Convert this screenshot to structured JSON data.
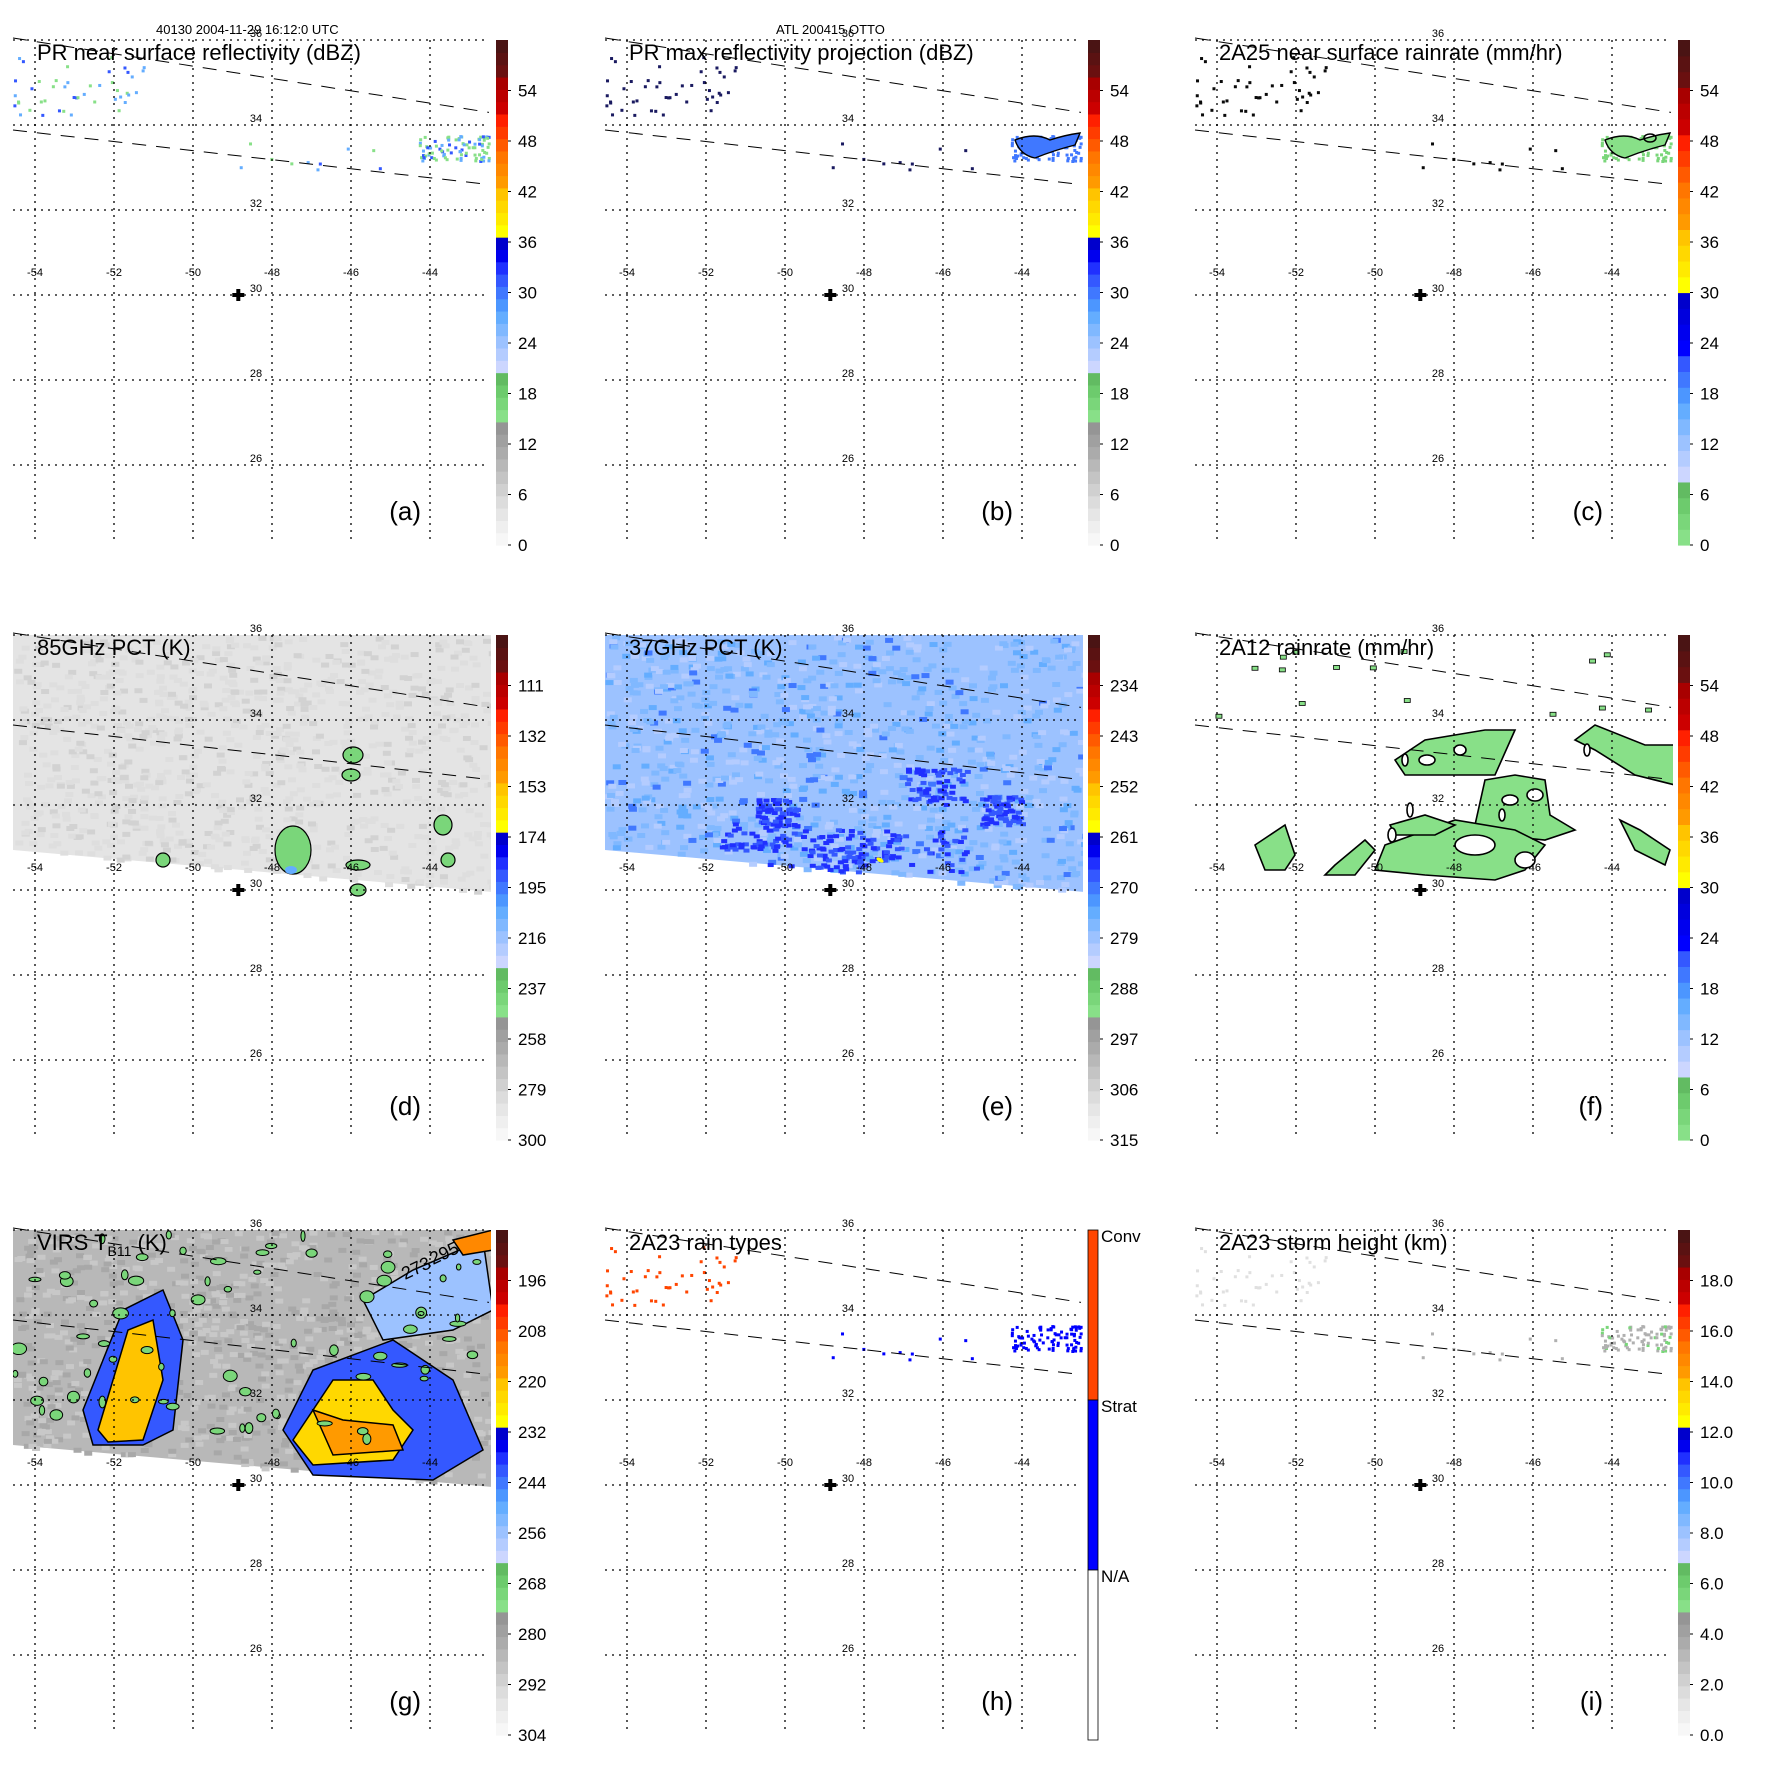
{
  "header": {
    "left_title": "40130 2004-11-29 16:12:0 UTC",
    "center_title": "ATL 200415 OTTO"
  },
  "chart_data": [
    {
      "id": "a",
      "type": "heatmap",
      "panel_label": "(a)",
      "title": "PR near surface reflectivity (dBZ)",
      "colorbar": {
        "kind": "continuous",
        "ticks": [
          "54",
          "48",
          "42",
          "36",
          "30",
          "24",
          "18",
          "12",
          "6",
          "0"
        ],
        "range": [
          0,
          60
        ]
      },
      "background": "none",
      "features": "sparse-pr",
      "lat_ticks": [
        "36",
        "34",
        "32",
        "30",
        "28",
        "26"
      ],
      "lon_ticks": [
        "-54",
        "-52",
        "-50",
        "-48",
        "-46",
        "-44"
      ],
      "storm_center": {
        "lon": -48.6,
        "lat": 30
      },
      "swath_edges": "dashed"
    },
    {
      "id": "b",
      "type": "heatmap",
      "panel_label": "(b)",
      "title": "PR max reflectivity projection (dBZ)",
      "colorbar": {
        "kind": "continuous",
        "ticks": [
          "54",
          "48",
          "42",
          "36",
          "30",
          "24",
          "18",
          "12",
          "6",
          "0"
        ],
        "range": [
          0,
          60
        ]
      },
      "background": "none",
      "features": "sparse-pr-contour",
      "lat_ticks": [
        "36",
        "34",
        "32",
        "30",
        "28",
        "26"
      ],
      "lon_ticks": [
        "-54",
        "-52",
        "-50",
        "-48",
        "-46",
        "-44"
      ],
      "storm_center": {
        "lon": -48.6,
        "lat": 30
      },
      "swath_edges": "dashed"
    },
    {
      "id": "c",
      "type": "heatmap",
      "panel_label": "(c)",
      "title": "2A25 near surface rainrate (mm/hr)",
      "colorbar": {
        "kind": "rain",
        "ticks": [
          "54",
          "48",
          "42",
          "36",
          "30",
          "24",
          "18",
          "12",
          "6",
          "0"
        ],
        "range": [
          0,
          60
        ]
      },
      "background": "none",
      "features": "sparse-rain",
      "lat_ticks": [
        "36",
        "34",
        "32",
        "30",
        "28",
        "26"
      ],
      "lon_ticks": [
        "-54",
        "-52",
        "-50",
        "-48",
        "-46",
        "-44"
      ],
      "storm_center": {
        "lon": -48.6,
        "lat": 30
      },
      "swath_edges": "dashed"
    },
    {
      "id": "d",
      "type": "heatmap",
      "panel_label": "(d)",
      "title": "85GHz PCT (K)",
      "colorbar": {
        "kind": "continuous",
        "ticks": [
          "111",
          "132",
          "153",
          "174",
          "195",
          "216",
          "237",
          "258",
          "279",
          "300"
        ],
        "range": [
          90,
          300
        ]
      },
      "background": "gray-swath",
      "features": "pct85",
      "lat_ticks": [
        "36",
        "34",
        "32",
        "30",
        "28",
        "26"
      ],
      "lon_ticks": [
        "-54",
        "-52",
        "-50",
        "-48",
        "-46",
        "-44"
      ],
      "storm_center": {
        "lon": -48.6,
        "lat": 30
      },
      "swath_edges": "dashed"
    },
    {
      "id": "e",
      "type": "heatmap",
      "panel_label": "(e)",
      "title": "37GHz PCT (K)",
      "colorbar": {
        "kind": "continuous",
        "ticks": [
          "234",
          "243",
          "252",
          "261",
          "270",
          "279",
          "288",
          "297",
          "306",
          "315"
        ],
        "range": [
          225,
          315
        ]
      },
      "background": "blue-swath",
      "features": "pct37",
      "lat_ticks": [
        "36",
        "34",
        "32",
        "30",
        "28",
        "26"
      ],
      "lon_ticks": [
        "-54",
        "-52",
        "-50",
        "-48",
        "-46",
        "-44"
      ],
      "storm_center": {
        "lon": -48.6,
        "lat": 30
      },
      "swath_edges": "dashed"
    },
    {
      "id": "f",
      "type": "heatmap",
      "panel_label": "(f)",
      "title": "2A12 rainrate (mm/hr)",
      "colorbar": {
        "kind": "rain",
        "ticks": [
          "54",
          "48",
          "42",
          "36",
          "30",
          "24",
          "18",
          "12",
          "6",
          "0"
        ],
        "range": [
          0,
          60
        ]
      },
      "background": "none",
      "features": "rain2a12",
      "lat_ticks": [
        "36",
        "34",
        "32",
        "30",
        "28",
        "26"
      ],
      "lon_ticks": [
        "-54",
        "-52",
        "-50",
        "-48",
        "-46",
        "-44"
      ],
      "storm_center": {
        "lon": -48.6,
        "lat": 30
      },
      "swath_edges": "dashed"
    },
    {
      "id": "g",
      "type": "heatmap",
      "panel_label": "(g)",
      "title": "VIRS T",
      "title_sub": "B11",
      "title_suffix": " (K)",
      "colorbar": {
        "kind": "continuous",
        "ticks": [
          "196",
          "208",
          "220",
          "232",
          "244",
          "256",
          "268",
          "280",
          "292",
          "304"
        ],
        "range": [
          184,
          304
        ]
      },
      "background": "gray-swath",
      "features": "virs",
      "contour_labels": [
        "273",
        "295"
      ],
      "lat_ticks": [
        "36",
        "34",
        "32",
        "30",
        "28",
        "26"
      ],
      "lon_ticks": [
        "-54",
        "-52",
        "-50",
        "-48",
        "-46",
        "-44"
      ],
      "storm_center": {
        "lon": -48.6,
        "lat": 30
      },
      "swath_edges": "dashed"
    },
    {
      "id": "h",
      "type": "heatmap",
      "panel_label": "(h)",
      "title": "2A23 rain types",
      "colorbar": {
        "kind": "categorical",
        "categories": [
          {
            "label": "Conv",
            "color": "#ff4500"
          },
          {
            "label": "Strat",
            "color": "#0000ff"
          },
          {
            "label": "N/A",
            "color": "#ffffff"
          }
        ]
      },
      "background": "none",
      "features": "raintype",
      "lat_ticks": [
        "36",
        "34",
        "32",
        "30",
        "28",
        "26"
      ],
      "lon_ticks": [
        "-54",
        "-52",
        "-50",
        "-48",
        "-46",
        "-44"
      ],
      "storm_center": {
        "lon": -48.6,
        "lat": 30
      },
      "swath_edges": "dashed"
    },
    {
      "id": "i",
      "type": "heatmap",
      "panel_label": "(i)",
      "title": "2A23 storm height (km)",
      "colorbar": {
        "kind": "continuous",
        "ticks": [
          "18.0",
          "16.0",
          "14.0",
          "12.0",
          "10.0",
          "8.0",
          "6.0",
          "4.0",
          "2.0",
          "0.0"
        ],
        "range": [
          0,
          20
        ]
      },
      "background": "none",
      "features": "stormheight",
      "lat_ticks": [
        "36",
        "34",
        "32",
        "30",
        "28",
        "26"
      ],
      "lon_ticks": [
        "-54",
        "-52",
        "-50",
        "-48",
        "-46",
        "-44"
      ],
      "storm_center": {
        "lon": -48.6,
        "lat": 30
      },
      "swath_edges": "dashed"
    }
  ],
  "colors": {
    "scale_continuous": [
      "#f7f7f7",
      "#efefef",
      "#e6e6e6",
      "#dcdcdc",
      "#d0d0d0",
      "#c4c4c4",
      "#b8b8b8",
      "#ababab",
      "#a0a0a0",
      "#959595",
      "#88e088",
      "#7ad67a",
      "#6dcb6d",
      "#62bb62",
      "#ccd6ff",
      "#b4ccff",
      "#9cc2ff",
      "#80b8ff",
      "#64adff",
      "#4c96ff",
      "#4078ff",
      "#3458ff",
      "#2030ff",
      "#0000ee",
      "#0000cc",
      "#ffff00",
      "#ffea00",
      "#ffd800",
      "#ffc400",
      "#ff9a00",
      "#ff8800",
      "#ff7600",
      "#ff5a00",
      "#ff3c00",
      "#ff2000",
      "#cc0000",
      "#bb0000",
      "#a80000",
      "#6a1010",
      "#5a1212",
      "#4a1414"
    ],
    "scale_rain": [
      "#88e088",
      "#7ad67a",
      "#6dcb6d",
      "#62bb62",
      "#ccd6ff",
      "#b4ccff",
      "#9cc2ff",
      "#80b8ff",
      "#64adff",
      "#4c96ff",
      "#4078ff",
      "#3458ff",
      "#0000ff",
      "#0000ee",
      "#0000dd",
      "#0000cc",
      "#ffff00",
      "#ffea00",
      "#ffd800",
      "#ffc400",
      "#ff9a00",
      "#ff8800",
      "#ff7600",
      "#ff5a00",
      "#ff3c00",
      "#ff2000",
      "#cc0000",
      "#bb0000",
      "#a80000",
      "#6a1010",
      "#5a1212",
      "#4a1414"
    ]
  }
}
